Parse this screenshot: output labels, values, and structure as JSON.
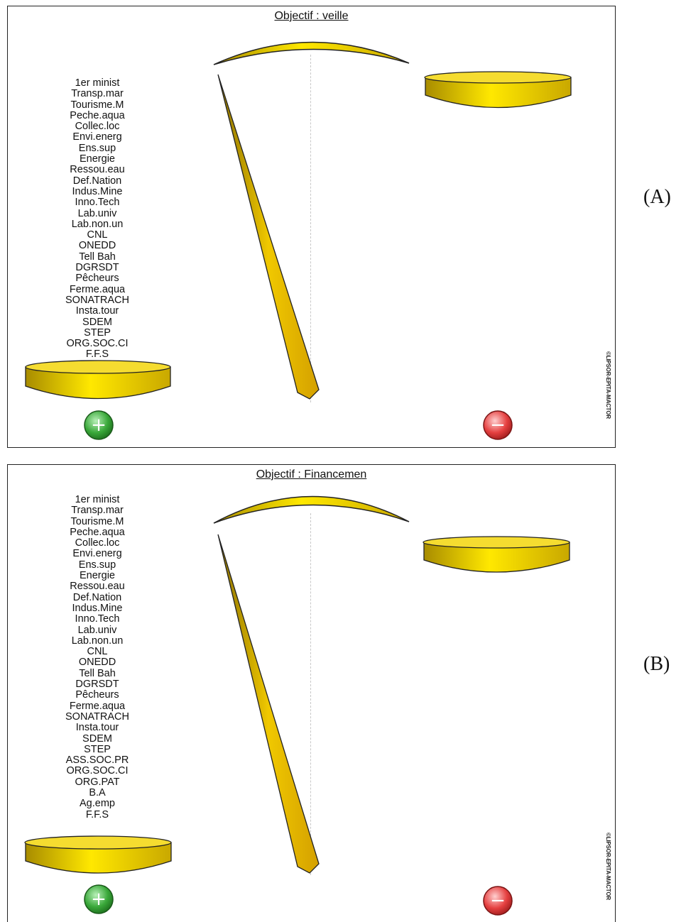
{
  "panels": [
    {
      "label": "(A)",
      "title": "Objectif : veille",
      "actors": [
        "1er minist",
        "Transp.mar",
        "Tourisme.M",
        "Peche.aqua",
        "Collec.loc",
        "Envi.energ",
        "Ens.sup",
        "Energie",
        "Ressou.eau",
        "Def.Nation",
        "Indus.Mine",
        "Inno.Tech",
        "Lab.univ",
        "Lab.non.un",
        "CNL",
        "ONEDD",
        "Tell Bah",
        "DGRSDT",
        "Pêcheurs",
        "Ferme.aqua",
        "SONATRACH",
        "Insta.tour",
        "SDEM",
        "STEP",
        "ORG.SOC.CI",
        "F.F.S"
      ],
      "plus_symbol": "+",
      "minus_symbol": "−",
      "watermark": "©LIPSOR-EPITA-MACTOR"
    },
    {
      "label": "(B)",
      "title": "Objectif : Financemen",
      "actors": [
        "1er minist",
        "Transp.mar",
        "Tourisme.M",
        "Peche.aqua",
        "Collec.loc",
        "Envi.energ",
        "Ens.sup",
        "Energie",
        "Ressou.eau",
        "Def.Nation",
        "Indus.Mine",
        "Inno.Tech",
        "Lab.univ",
        "Lab.non.un",
        "CNL",
        "ONEDD",
        "Tell Bah",
        "DGRSDT",
        "Pêcheurs",
        "Ferme.aqua",
        "SONATRACH",
        "Insta.tour",
        "SDEM",
        "STEP",
        "ASS.SOC.PR",
        "ORG.SOC.CI",
        "ORG.PAT",
        "B.A",
        "Ag.emp",
        "F.F.S"
      ],
      "plus_symbol": "+",
      "minus_symbol": "−",
      "watermark": "©LIPSOR-EPITA-MACTOR"
    }
  ],
  "colors": {
    "pan_yellow": "#f2d500",
    "pan_dark": "#b89a00",
    "plus_green": "#2e9a2e",
    "minus_red": "#e23a3a"
  }
}
